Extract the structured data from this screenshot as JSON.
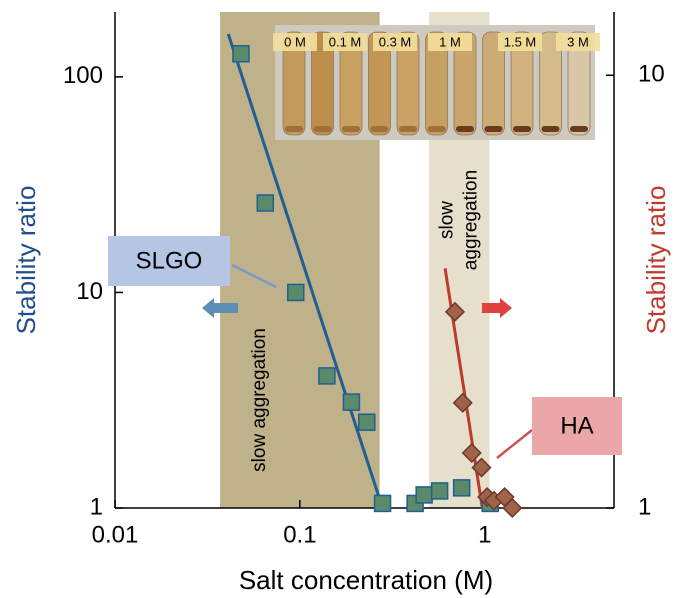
{
  "chart_data": {
    "type": "scatter",
    "x_label": "Salt concentration  (M)",
    "y_label": "Stability ratio",
    "y2_label": "Stability ratio",
    "xscale": "log",
    "yscale": "log",
    "y2scale": "log",
    "xlim": [
      0.01,
      5
    ],
    "xticks": [
      0.01,
      0.1,
      1
    ],
    "ylim": [
      1,
      200
    ],
    "yticks": [
      1,
      10,
      100
    ],
    "y2lim": [
      1,
      14
    ],
    "y2ticks": [
      1,
      10
    ],
    "series": [
      {
        "name": "SLGO",
        "axis": "y",
        "marker": "square",
        "color": "#5b8a6b",
        "edge": "#1f5f94",
        "x": [
          0.048,
          0.065,
          0.095,
          0.14,
          0.19,
          0.23,
          0.28,
          0.42,
          0.47,
          0.57,
          0.75,
          1.07
        ],
        "values": [
          128,
          26,
          10,
          4.1,
          3.1,
          2.5,
          1.05,
          1.05,
          1.15,
          1.2,
          1.24,
          1.05
        ]
      },
      {
        "name": "HA",
        "axis": "y2",
        "marker": "diamond",
        "color": "#a0634a",
        "edge": "#6a3a2a",
        "x": [
          0.69,
          0.76,
          0.85,
          0.96,
          1.03,
          1.12,
          1.28,
          1.41
        ],
        "values": [
          2.84,
          1.75,
          1.34,
          1.24,
          1.06,
          1.04,
          1.06,
          1.0
        ]
      }
    ],
    "fit_lines": [
      {
        "axis": "y",
        "color": "#1f5f94",
        "x": [
          0.041,
          0.28
        ],
        "values": [
          158,
          1
        ]
      },
      {
        "axis": "y2",
        "color": "#c0392b",
        "x": [
          0.61,
          0.97
        ],
        "values": [
          3.58,
          1
        ]
      }
    ],
    "bands": [
      {
        "x": [
          0.037,
          0.27
        ],
        "color": "#bfb28a",
        "label": "slow aggregation"
      },
      {
        "x": [
          0.5,
          1.06
        ],
        "color": "#e6dfcb",
        "label": "slow\naggregation"
      }
    ],
    "inset_labels": [
      "0 M",
      "0.1 M",
      "0.3 M",
      "1 M",
      "1.5 M",
      "3 M"
    ]
  }
}
